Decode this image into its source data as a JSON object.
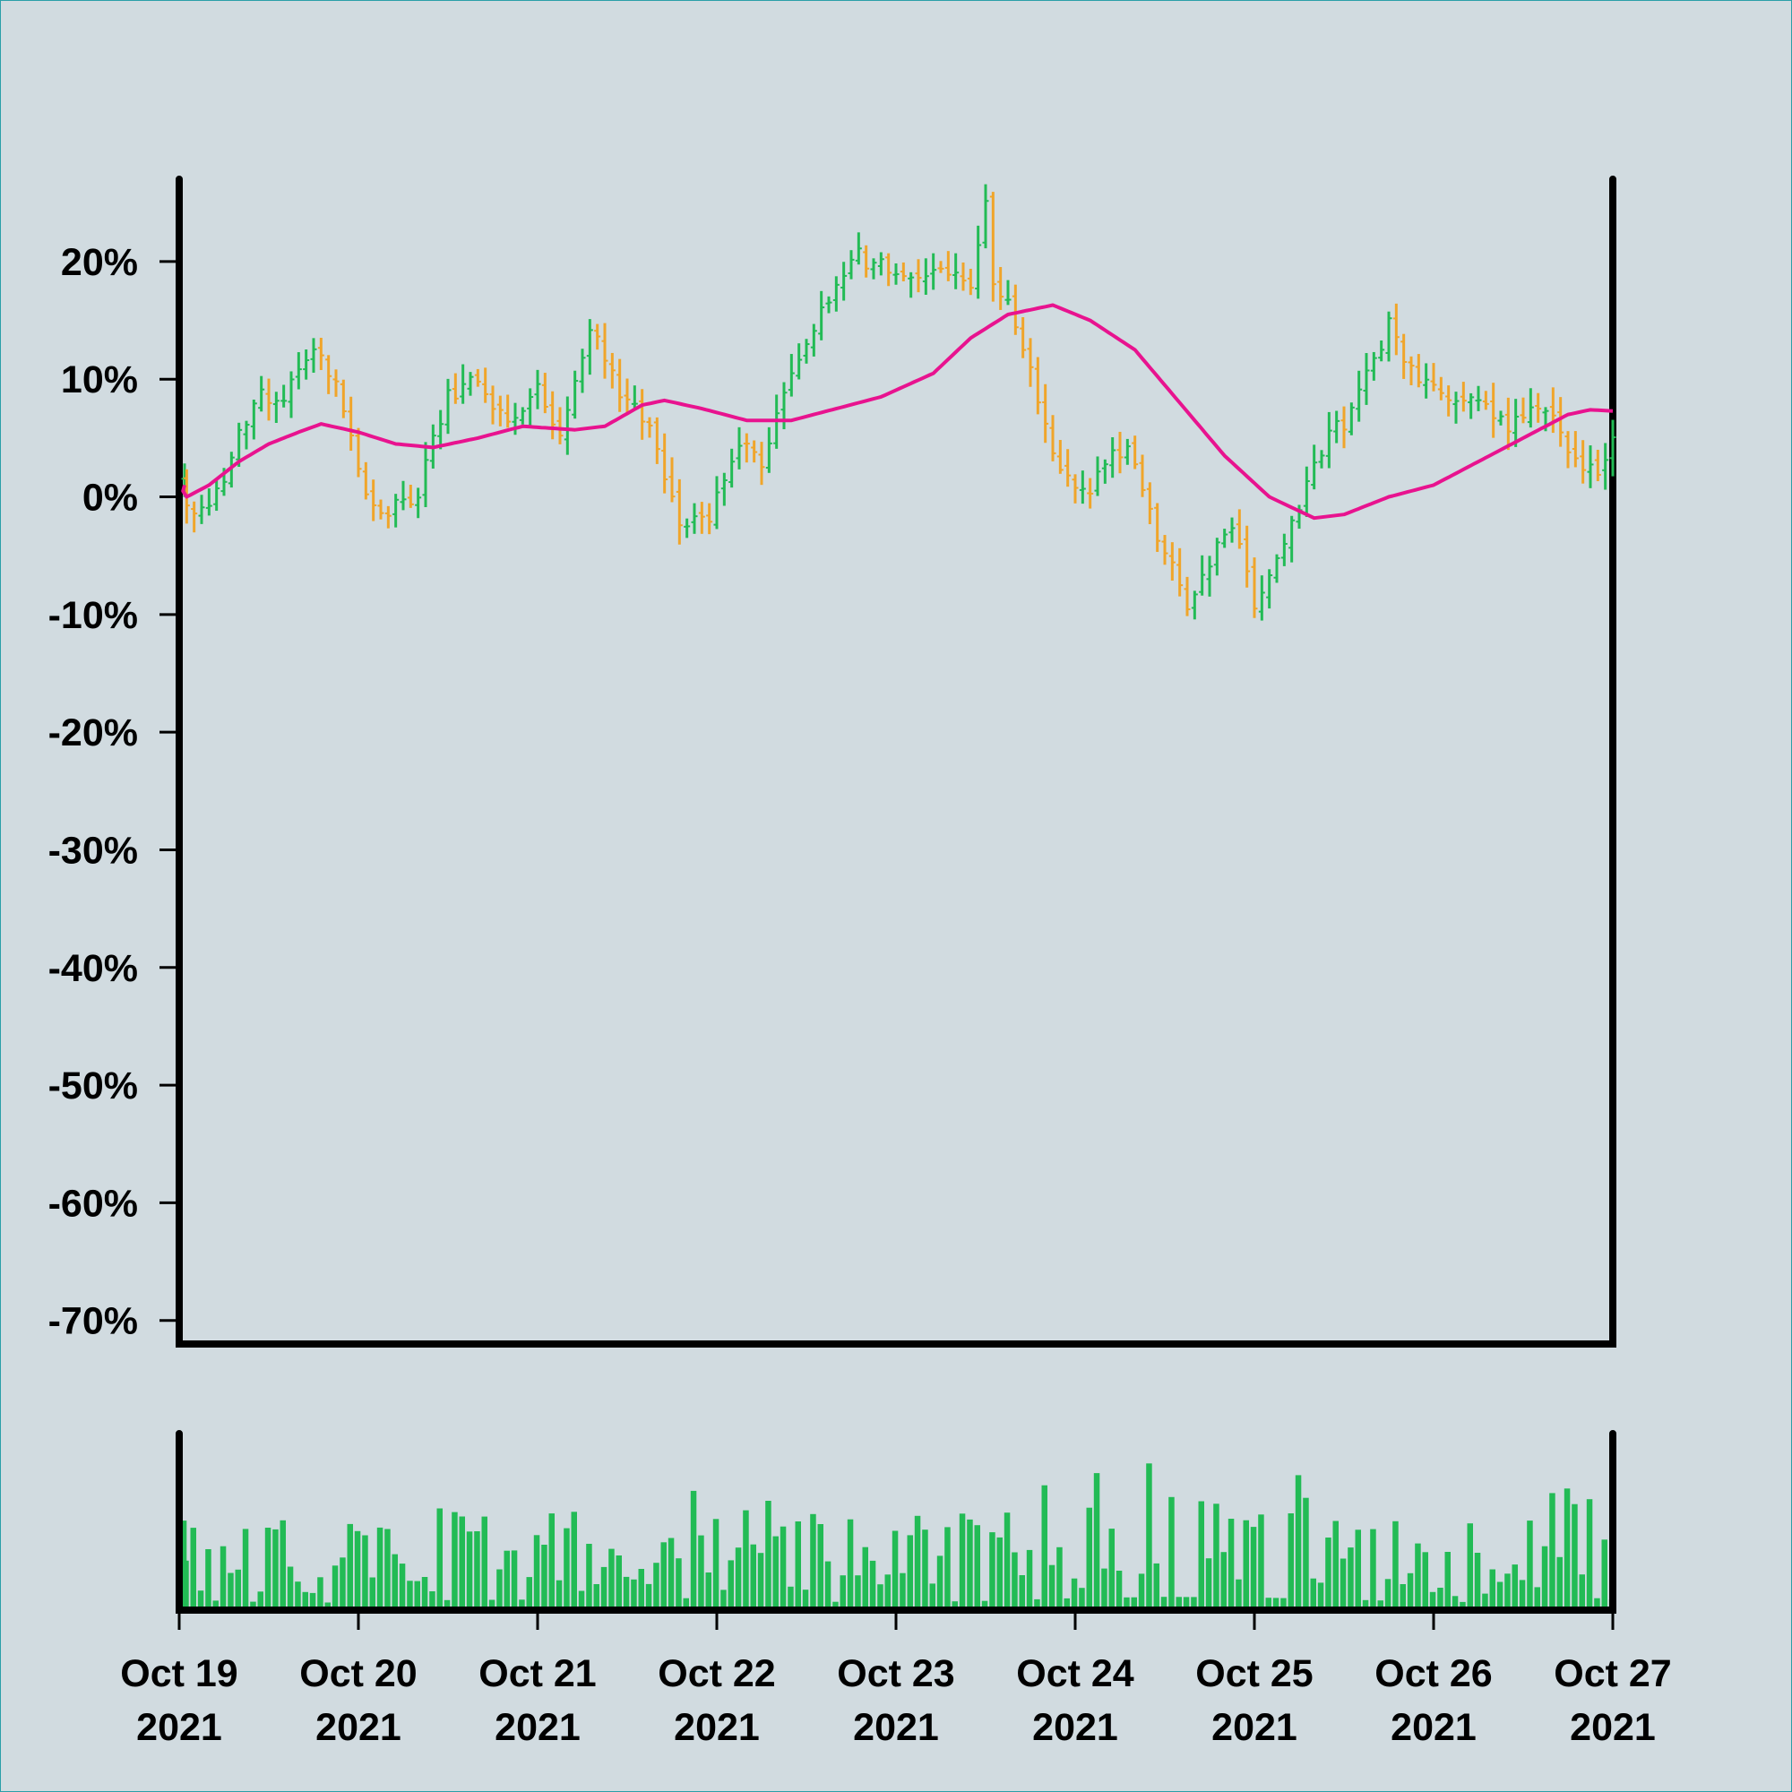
{
  "chart_data": {
    "type": "ohlc",
    "title": "",
    "xlabel": "",
    "ylabel": "",
    "colors": {
      "up": "#22bb55",
      "down": "#f0a52a",
      "moving_average": "#e8138f",
      "volume": "#22bb55",
      "background": "#d1dbe0",
      "axes": "#000000"
    },
    "price_panel": {
      "ylim": [
        -72,
        27
      ],
      "y_ticks": [
        20,
        10,
        0,
        -10,
        -20,
        -30,
        -40,
        -50,
        -60,
        -70
      ],
      "y_tick_labels": [
        "20%",
        "10%",
        "0%",
        "-10%",
        "-20%",
        "-30%",
        "-40%",
        "-50%",
        "-60%",
        "-70%"
      ],
      "grid": false
    },
    "volume_panel": {
      "grid": false
    },
    "x_ticks": [
      {
        "date": "2021-10-19",
        "line1": "Oct 19",
        "line2": "2021"
      },
      {
        "date": "2021-10-20",
        "line1": "Oct 20",
        "line2": "2021"
      },
      {
        "date": "2021-10-21",
        "line1": "Oct 21",
        "line2": "2021"
      },
      {
        "date": "2021-10-22",
        "line1": "Oct 22",
        "line2": "2021"
      },
      {
        "date": "2021-10-23",
        "line1": "Oct 23",
        "line2": "2021"
      },
      {
        "date": "2021-10-24",
        "line1": "Oct 24",
        "line2": "2021"
      },
      {
        "date": "2021-10-25",
        "line1": "Oct 25",
        "line2": "2021"
      },
      {
        "date": "2021-10-26",
        "line1": "Oct 26",
        "line2": "2021"
      },
      {
        "date": "2021-10-27",
        "line1": "Oct 27",
        "line2": "2021"
      }
    ],
    "x_range": [
      "2021-10-19 00:00",
      "2021-10-27 00:00"
    ],
    "bar_interval_hours": 1,
    "close_anchors": [
      [
        "2021-10-19 00:00",
        1.5
      ],
      [
        "2021-10-19 02:00",
        -1.5
      ],
      [
        "2021-10-19 06:00",
        1.5
      ],
      [
        "2021-10-19 10:00",
        8.5
      ],
      [
        "2021-10-19 14:00",
        8.0
      ],
      [
        "2021-10-19 18:00",
        13.0
      ],
      [
        "2021-10-19 21:00",
        10.0
      ],
      [
        "2021-10-20 01:00",
        0.0
      ],
      [
        "2021-10-20 03:00",
        -2.0
      ],
      [
        "2021-10-20 08:00",
        0.5
      ],
      [
        "2021-10-20 12:00",
        8.5
      ],
      [
        "2021-10-20 16:00",
        10.0
      ],
      [
        "2021-10-20 20:00",
        6.0
      ],
      [
        "2021-10-21 00:00",
        9.5
      ],
      [
        "2021-10-21 03:00",
        5.5
      ],
      [
        "2021-10-21 07:00",
        14.5
      ],
      [
        "2021-10-21 11:00",
        8.5
      ],
      [
        "2021-10-21 15:00",
        6.0
      ],
      [
        "2021-10-21 19:00",
        -2.0
      ],
      [
        "2021-10-21 23:00",
        -1.5
      ],
      [
        "2021-10-22 03:00",
        5.0
      ],
      [
        "2021-10-22 06:00",
        2.5
      ],
      [
        "2021-10-22 10:00",
        11.0
      ],
      [
        "2021-10-22 14:00",
        15.5
      ],
      [
        "2021-10-22 18:00",
        20.5
      ],
      [
        "2021-10-23 00:00",
        19.5
      ],
      [
        "2021-10-23 03:00",
        18.0
      ],
      [
        "2021-10-23 07:00",
        19.0
      ],
      [
        "2021-10-23 10:00",
        18.5
      ],
      [
        "2021-10-23 12:00",
        24.5
      ],
      [
        "2021-10-23 13:00",
        18.5
      ],
      [
        "2021-10-23 16:00",
        15.0
      ],
      [
        "2021-10-23 20:00",
        5.5
      ],
      [
        "2021-10-24 00:00",
        0.0
      ],
      [
        "2021-10-24 03:00",
        1.5
      ],
      [
        "2021-10-24 07:00",
        5.0
      ],
      [
        "2021-10-24 11:00",
        -3.0
      ],
      [
        "2021-10-24 15:00",
        -9.5
      ],
      [
        "2021-10-24 18:00",
        -6.0
      ],
      [
        "2021-10-24 21:00",
        -2.0
      ],
      [
        "2021-10-25 00:00",
        -9.5
      ],
      [
        "2021-10-25 04:00",
        -4.5
      ],
      [
        "2021-10-25 08:00",
        3.5
      ],
      [
        "2021-10-25 12:00",
        6.5
      ],
      [
        "2021-10-25 16:00",
        12.0
      ],
      [
        "2021-10-25 18:00",
        14.5
      ],
      [
        "2021-10-25 21:00",
        10.5
      ],
      [
        "2021-10-26 02:00",
        8.5
      ],
      [
        "2021-10-26 06:00",
        7.5
      ],
      [
        "2021-10-26 10:00",
        6.0
      ],
      [
        "2021-10-26 15:00",
        7.5
      ],
      [
        "2021-10-26 20:00",
        2.0
      ],
      [
        "2021-10-26 23:00",
        3.0
      ],
      [
        "2021-10-27 00:00",
        5.0
      ]
    ],
    "moving_average_anchors": [
      [
        "2021-10-19 00:00",
        1.0
      ],
      [
        "2021-10-19 01:00",
        0.0
      ],
      [
        "2021-10-19 04:00",
        1.0
      ],
      [
        "2021-10-19 08:00",
        3.0
      ],
      [
        "2021-10-19 12:00",
        4.5
      ],
      [
        "2021-10-19 16:00",
        5.5
      ],
      [
        "2021-10-19 19:00",
        6.2
      ],
      [
        "2021-10-20 00:00",
        5.5
      ],
      [
        "2021-10-20 05:00",
        4.5
      ],
      [
        "2021-10-20 10:00",
        4.2
      ],
      [
        "2021-10-20 16:00",
        5.0
      ],
      [
        "2021-10-20 22:00",
        6.0
      ],
      [
        "2021-10-21 05:00",
        5.7
      ],
      [
        "2021-10-21 09:00",
        6.0
      ],
      [
        "2021-10-21 14:00",
        7.8
      ],
      [
        "2021-10-21 17:00",
        8.2
      ],
      [
        "2021-10-21 22:00",
        7.5
      ],
      [
        "2021-10-22 04:00",
        6.5
      ],
      [
        "2021-10-22 10:00",
        6.5
      ],
      [
        "2021-10-22 16:00",
        7.5
      ],
      [
        "2021-10-22 22:00",
        8.5
      ],
      [
        "2021-10-23 05:00",
        10.5
      ],
      [
        "2021-10-23 10:00",
        13.5
      ],
      [
        "2021-10-23 15:00",
        15.5
      ],
      [
        "2021-10-23 21:00",
        16.3
      ],
      [
        "2021-10-24 02:00",
        15.0
      ],
      [
        "2021-10-24 08:00",
        12.5
      ],
      [
        "2021-10-24 14:00",
        8.0
      ],
      [
        "2021-10-24 20:00",
        3.5
      ],
      [
        "2021-10-25 02:00",
        0.0
      ],
      [
        "2021-10-25 08:00",
        -1.8
      ],
      [
        "2021-10-25 12:00",
        -1.5
      ],
      [
        "2021-10-25 18:00",
        0.0
      ],
      [
        "2021-10-26 00:00",
        1.0
      ],
      [
        "2021-10-26 06:00",
        3.0
      ],
      [
        "2021-10-26 12:00",
        5.0
      ],
      [
        "2021-10-26 18:00",
        7.0
      ],
      [
        "2021-10-26 21:00",
        7.4
      ],
      [
        "2021-10-27 00:00",
        7.3
      ]
    ],
    "volume_shape": [
      [
        "2021-10-19 00:00",
        0.4
      ],
      [
        "2021-10-19 12:00",
        0.3
      ],
      [
        "2021-10-20 00:00",
        0.28
      ],
      [
        "2021-10-20 12:00",
        0.38
      ],
      [
        "2021-10-21 00:00",
        0.4
      ],
      [
        "2021-10-21 12:00",
        0.22
      ],
      [
        "2021-10-21 20:00",
        0.45
      ],
      [
        "2021-10-22 12:00",
        0.32
      ],
      [
        "2021-10-23 00:00",
        0.3
      ],
      [
        "2021-10-23 12:00",
        0.35
      ],
      [
        "2021-10-24 00:00",
        0.45
      ],
      [
        "2021-10-24 12:00",
        0.5
      ],
      [
        "2021-10-25 00:00",
        0.48
      ],
      [
        "2021-10-25 12:00",
        0.4
      ],
      [
        "2021-10-26 00:00",
        0.32
      ],
      [
        "2021-10-26 12:00",
        0.28
      ],
      [
        "2021-10-26 20:00",
        0.5
      ],
      [
        "2021-10-27 00:00",
        0.4
      ]
    ]
  }
}
